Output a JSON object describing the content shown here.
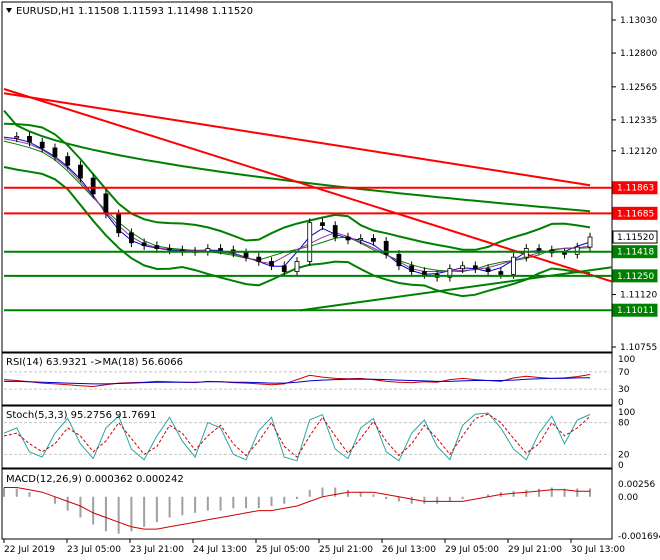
{
  "header": {
    "symbol": "EURUSD,H1",
    "ohlc": "1.11508 1.11593 1.11498 1.11520"
  },
  "colors": {
    "bull": "#000000",
    "bear": "#000000",
    "green": "#008000",
    "red": "#ff0000",
    "darkred": "#cc0000",
    "blue": "#0000cc",
    "grid": "#c8c8c8",
    "teal": "#2aa3a3"
  },
  "main_axis": {
    "ticks": [
      "1.13030",
      "1.12800",
      "1.12565",
      "1.12335",
      "1.12120",
      "1.11120",
      "1.10755"
    ],
    "price_labels": [
      {
        "text": "1.11863",
        "color": "#ff0000"
      },
      {
        "text": "1.11685",
        "color": "#ff0000"
      },
      {
        "text": "1.11520",
        "color": "#000000"
      },
      {
        "text": "1.11418",
        "color": "#008000"
      },
      {
        "text": "1.11250",
        "color": "#008000"
      },
      {
        "text": "1.11011",
        "color": "#008000"
      }
    ]
  },
  "rsi": {
    "label": "RSI(14) 63.9321  ->MA(18) 56.6066",
    "ticks": [
      "100",
      "70",
      "30",
      "0"
    ]
  },
  "stoch": {
    "label": "Stoch(5,3,3) 95.2756 91.7691",
    "ticks": [
      "100",
      "80",
      "20",
      "0"
    ]
  },
  "macd": {
    "label": "MACD(12,26,9) 0.000362 0.000242",
    "ticks": [
      "0.00256",
      "0.00",
      "-0.001694"
    ]
  },
  "x_labels": [
    "22 Jul 2019",
    "23 Jul 05:00",
    "23 Jul 21:00",
    "24 Jul 13:00",
    "25 Jul 05:00",
    "25 Jul 21:00",
    "26 Jul 13:00",
    "29 Jul 05:00",
    "29 Jul 21:00",
    "30 Jul 13:00"
  ],
  "chart_data": {
    "type": "candlestick",
    "levels_resistance": [
      1.11863,
      1.11685
    ],
    "levels_support": [
      1.11418,
      1.1125,
      1.11011
    ],
    "last_price": 1.1152,
    "price_path": [
      1.1221,
      1.1222,
      1.1218,
      1.1214,
      1.1208,
      1.1202,
      1.1193,
      1.1182,
      1.1168,
      1.1155,
      1.1148,
      1.1146,
      1.1144,
      1.1143,
      1.1142,
      1.1142,
      1.1144,
      1.1143,
      1.1141,
      1.1138,
      1.1135,
      1.1132,
      1.1128,
      1.1135,
      1.1162,
      1.116,
      1.1152,
      1.115,
      1.1151,
      1.1149,
      1.114,
      1.1132,
      1.1128,
      1.1126,
      1.1124,
      1.113,
      1.1132,
      1.113,
      1.1128,
      1.1126,
      1.1138,
      1.1144,
      1.1143,
      1.1141,
      1.114,
      1.1145,
      1.1152
    ],
    "rsi_path": [
      52,
      50,
      47,
      44,
      42,
      40,
      38,
      36,
      40,
      44,
      45,
      46,
      48,
      47,
      46,
      45,
      48,
      47,
      45,
      44,
      42,
      40,
      42,
      52,
      62,
      58,
      55,
      54,
      55,
      52,
      48,
      46,
      45,
      47,
      46,
      52,
      55,
      52,
      50,
      48,
      56,
      60,
      57,
      55,
      56,
      59,
      63.9
    ],
    "rsi_ma_path": [
      48,
      48,
      47,
      46,
      45,
      44,
      43,
      42,
      42,
      43,
      44,
      45,
      46,
      46,
      46,
      46,
      47,
      47,
      46,
      46,
      45,
      44,
      44,
      46,
      49,
      51,
      52,
      53,
      53,
      53,
      52,
      51,
      50,
      49,
      48,
      48,
      49,
      50,
      50,
      50,
      51,
      53,
      54,
      55,
      55,
      56,
      56.6
    ],
    "stoch_main_path": [
      60,
      70,
      25,
      15,
      60,
      88,
      40,
      12,
      70,
      92,
      30,
      10,
      55,
      90,
      45,
      15,
      80,
      70,
      20,
      10,
      65,
      90,
      15,
      8,
      85,
      95,
      30,
      12,
      70,
      88,
      25,
      8,
      60,
      85,
      35,
      10,
      75,
      96,
      98,
      70,
      30,
      10,
      60,
      92,
      40,
      85,
      95.3
    ],
    "stoch_signal_path": [
      55,
      60,
      40,
      25,
      40,
      70,
      55,
      25,
      45,
      80,
      50,
      20,
      35,
      75,
      60,
      28,
      55,
      75,
      40,
      18,
      45,
      80,
      35,
      15,
      55,
      90,
      55,
      22,
      50,
      82,
      45,
      18,
      40,
      75,
      50,
      20,
      55,
      88,
      96,
      80,
      50,
      22,
      40,
      80,
      55,
      70,
      91.8
    ],
    "macd_hist_path": [
      0.0004,
      0.00035,
      0.0002,
      0.0,
      -0.0003,
      -0.0006,
      -0.0009,
      -0.0012,
      -0.0015,
      -0.0016,
      -0.0015,
      -0.0013,
      -0.0011,
      -0.0009,
      -0.0008,
      -0.0007,
      -0.0006,
      -0.0006,
      -0.0005,
      -0.0005,
      -0.0005,
      -0.0004,
      -0.0003,
      -0.0001,
      0.0003,
      0.0004,
      0.0004,
      0.0003,
      0.0002,
      0.0001,
      -0.0001,
      -0.0002,
      -0.0003,
      -0.0003,
      -0.0003,
      -0.0002,
      -0.0001,
      0.0,
      0.0001,
      0.0002,
      0.00025,
      0.0003,
      0.00035,
      0.0004,
      0.00035,
      0.00036,
      0.00036
    ],
    "macd_signal_path": [
      0.0004,
      0.0004,
      0.0003,
      0.0002,
      0.0,
      -0.0002,
      -0.0004,
      -0.0007,
      -0.0009,
      -0.0011,
      -0.0013,
      -0.0014,
      -0.0014,
      -0.0013,
      -0.0012,
      -0.0011,
      -0.001,
      -0.0009,
      -0.0008,
      -0.0007,
      -0.0006,
      -0.0006,
      -0.0005,
      -0.0004,
      -0.0002,
      0.0,
      0.0001,
      0.0002,
      0.0002,
      0.0002,
      0.0001,
      0.0,
      -0.0001,
      -0.0002,
      -0.0002,
      -0.0002,
      -0.0002,
      -0.0001,
      0.0,
      0.0001,
      0.00015,
      0.0002,
      0.00025,
      0.0003,
      0.0003,
      0.00024,
      0.00024
    ]
  }
}
